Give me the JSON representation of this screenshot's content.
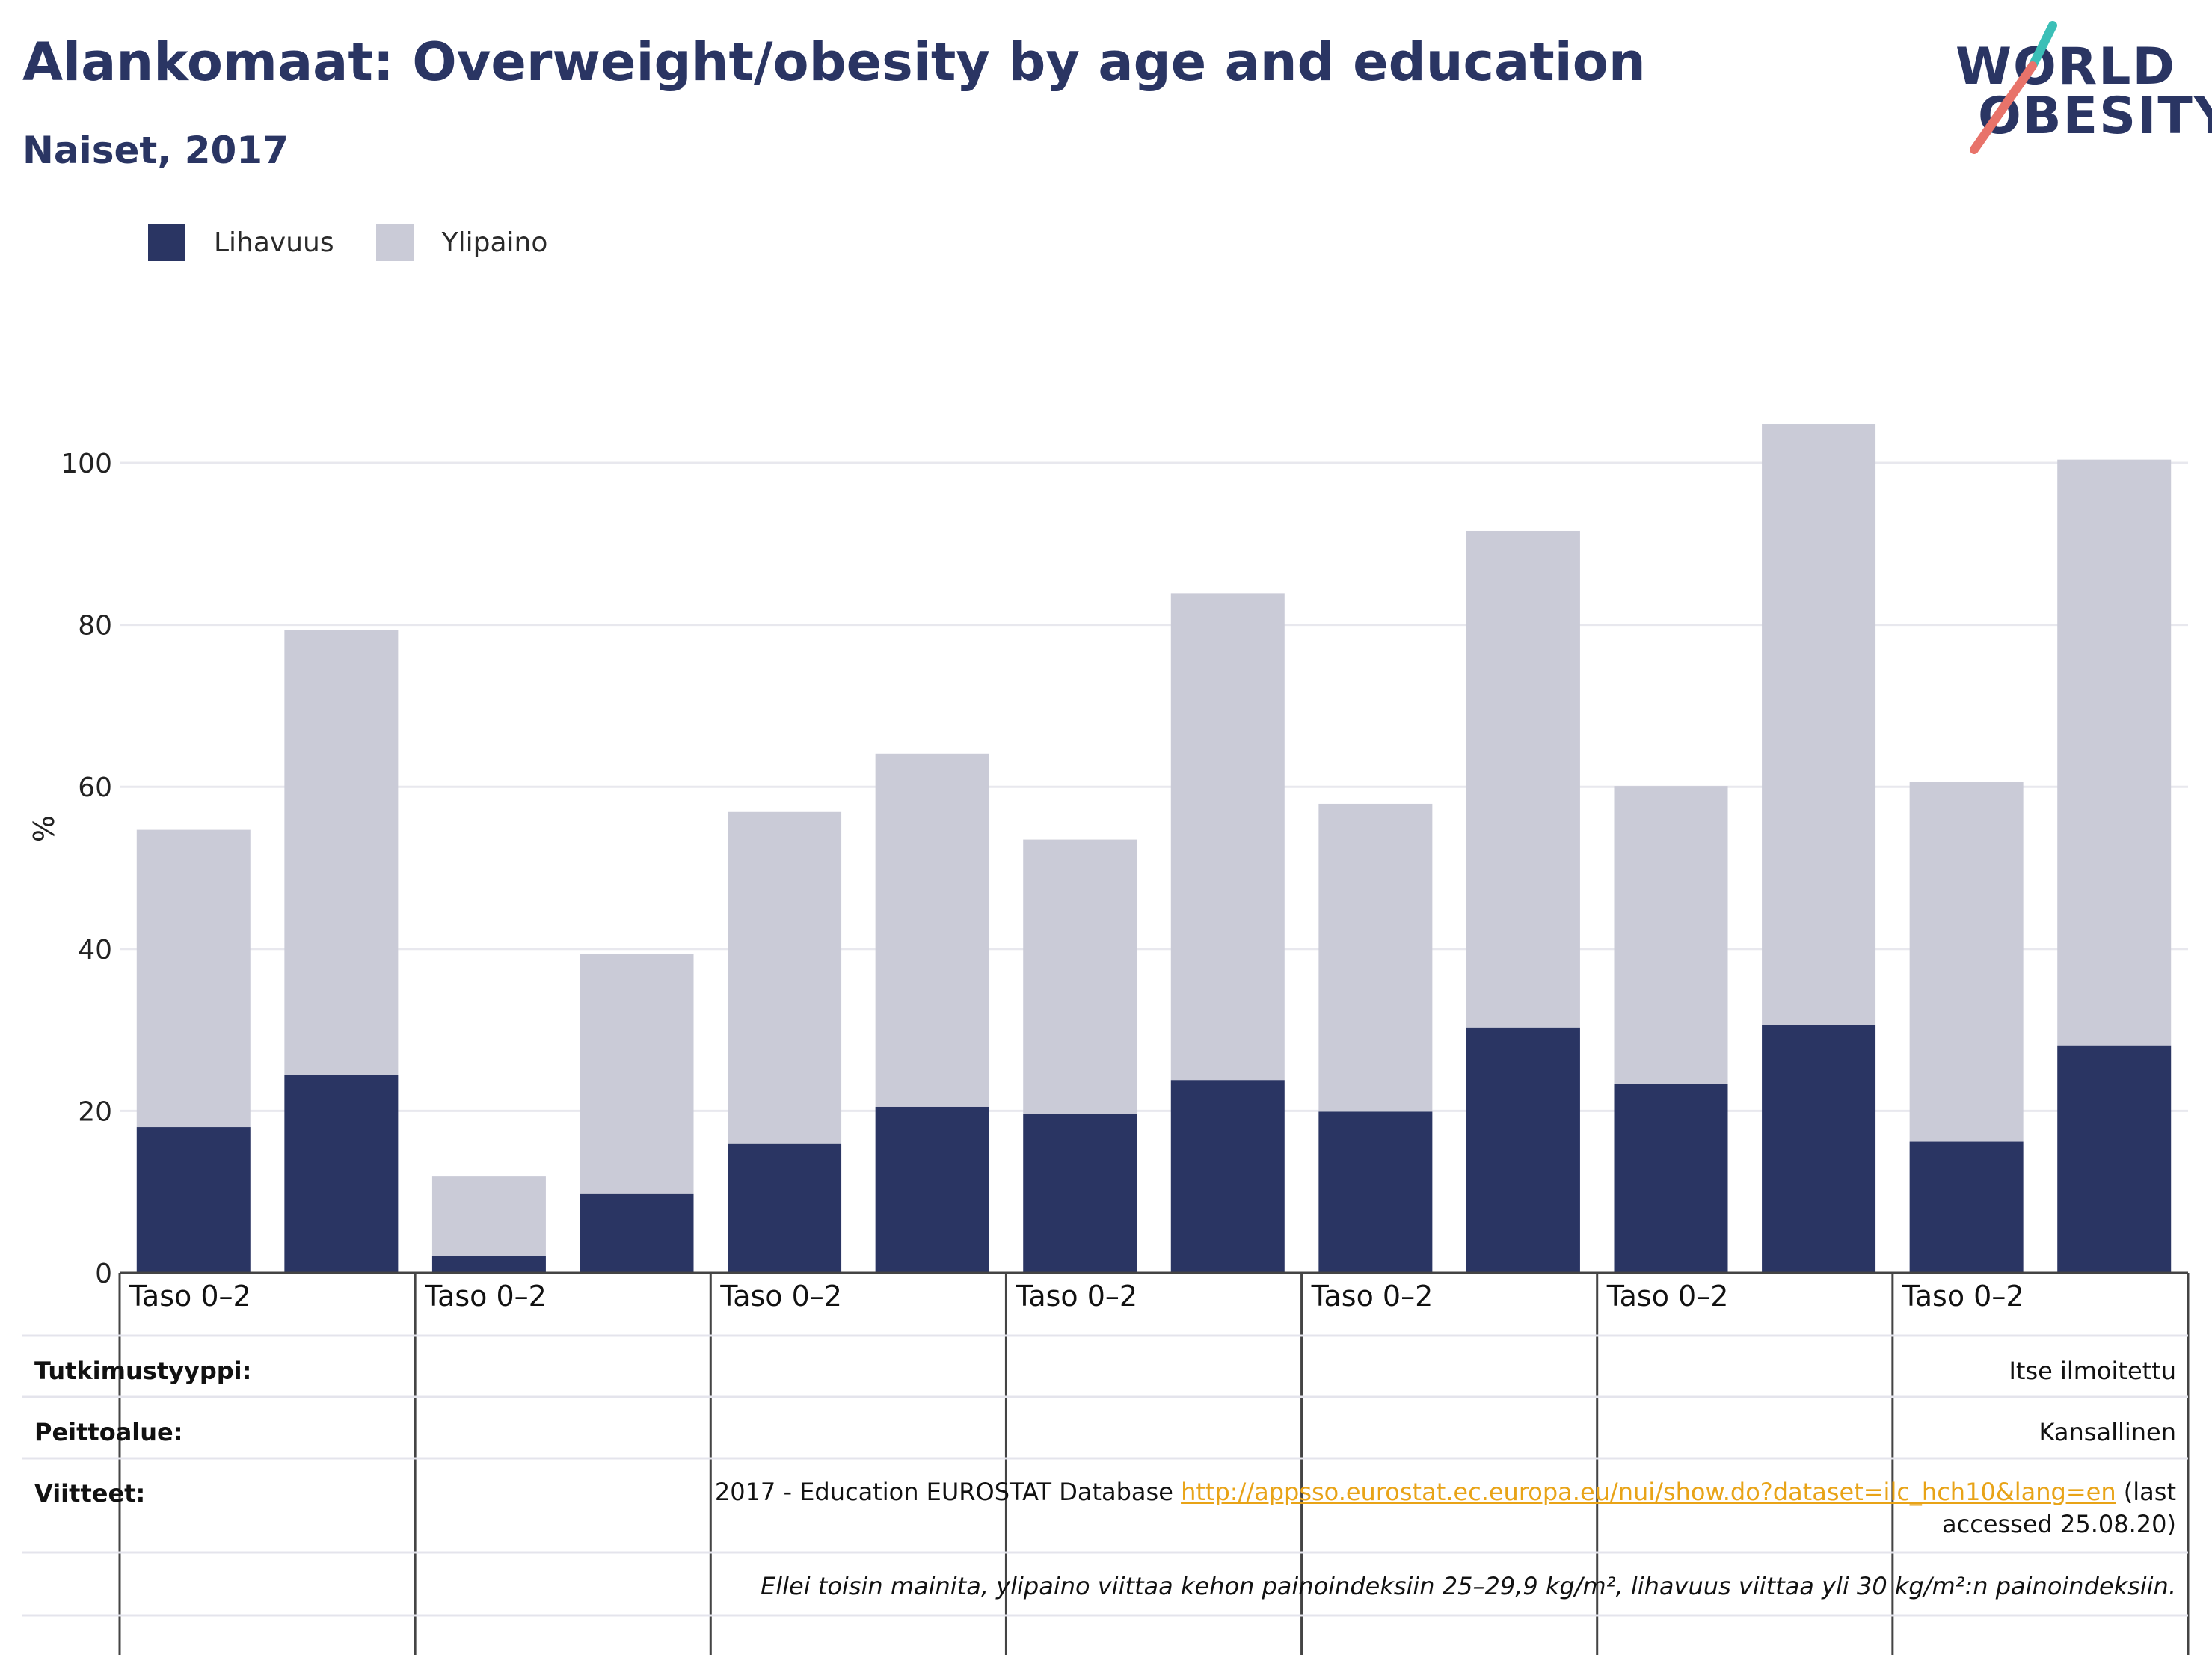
{
  "title": "Alankomaat: Overweight/obesity by age and education",
  "subtitle": "Naiset, 2017",
  "logo": {
    "line1": "WORLD",
    "line2": "OBESITY"
  },
  "colors": {
    "obesity": "#2a3563",
    "overweight": "#cacbd7",
    "gridline": "#e8e8ee",
    "text": "#2a3563",
    "link": "#e8a317",
    "logo_teal": "#3bbfb7",
    "logo_coral": "#e8736a"
  },
  "chart_data": {
    "type": "bar",
    "stacked": true,
    "categories": [
      "Taso 0–2",
      "",
      "Taso 0–2",
      "",
      "Taso 0–2",
      "",
      "Taso 0–2",
      "",
      "Taso 0–2",
      "",
      "Taso 0–2",
      "",
      "Taso 0–2",
      ""
    ],
    "series": [
      {
        "name": "Lihavuus",
        "color": "#2a3563",
        "values": [
          18.0,
          24.4,
          2.1,
          9.8,
          15.9,
          20.5,
          19.6,
          23.8,
          19.9,
          30.3,
          23.3,
          30.6,
          16.2,
          28.0
        ]
      },
      {
        "name": "Ylipaino",
        "color": "#cacbd7",
        "values": [
          36.7,
          55.0,
          9.8,
          29.6,
          41.0,
          43.6,
          33.9,
          60.1,
          38.0,
          61.3,
          36.8,
          74.2,
          44.4,
          72.4
        ]
      }
    ],
    "group_labels": [
      "Taso 0–2",
      "Taso 0–2",
      "Taso 0–2",
      "Taso 0–2",
      "Taso 0–2",
      "Taso 0–2",
      "Taso 0–2"
    ],
    "ylabel": "%",
    "xlabel": "",
    "ylim": [
      0,
      110
    ],
    "yticks": [
      0,
      20,
      40,
      60,
      80,
      100
    ],
    "grid": true,
    "legend_position": "top-left"
  },
  "info": {
    "study_type_label": "Tutkimustyyppi:",
    "study_type_value": "Itse ilmoitettu",
    "coverage_label": "Peittoalue:",
    "coverage_value": "Kansallinen",
    "references_label": "Viitteet:",
    "reference_text": "2017 - Education EUROSTAT Database",
    "reference_url": "http://appsso.eurostat.ec.europa.eu/nui/show.do?dataset=ilc_hch10&lang=en",
    "reference_suffix": "(last accessed 25.08.20)",
    "note": "Ellei toisin mainita, ylipaino viittaa kehon painoindeksiin 25–29,9 kg/m², lihavuus viittaa yli 30 kg/m²:n painoindeksiin."
  }
}
